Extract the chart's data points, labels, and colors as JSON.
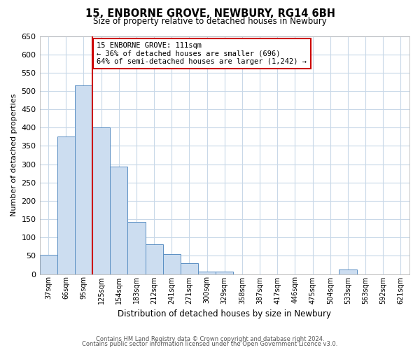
{
  "title": "15, ENBORNE GROVE, NEWBURY, RG14 6BH",
  "subtitle": "Size of property relative to detached houses in Newbury",
  "xlabel": "Distribution of detached houses by size in Newbury",
  "ylabel": "Number of detached properties",
  "bar_labels": [
    "37sqm",
    "66sqm",
    "95sqm",
    "125sqm",
    "154sqm",
    "183sqm",
    "212sqm",
    "241sqm",
    "271sqm",
    "300sqm",
    "329sqm",
    "358sqm",
    "387sqm",
    "417sqm",
    "446sqm",
    "475sqm",
    "504sqm",
    "533sqm",
    "563sqm",
    "592sqm",
    "621sqm"
  ],
  "bar_values": [
    52,
    375,
    515,
    400,
    293,
    143,
    82,
    55,
    30,
    7,
    7,
    0,
    0,
    0,
    0,
    0,
    0,
    12,
    0,
    0,
    0
  ],
  "bar_color": "#ccddf0",
  "bar_edge_color": "#5a8fc3",
  "reference_line_color": "#cc0000",
  "annotation_text": "15 ENBORNE GROVE: 111sqm\n← 36% of detached houses are smaller (696)\n64% of semi-detached houses are larger (1,242) →",
  "annotation_box_color": "#ffffff",
  "annotation_box_edge": "#cc0000",
  "ylim": [
    0,
    650
  ],
  "yticks": [
    0,
    50,
    100,
    150,
    200,
    250,
    300,
    350,
    400,
    450,
    500,
    550,
    600,
    650
  ],
  "footer_line1": "Contains HM Land Registry data © Crown copyright and database right 2024.",
  "footer_line2": "Contains public sector information licensed under the Open Government Licence v3.0.",
  "bg_color": "#ffffff",
  "grid_color": "#c8d8e8"
}
